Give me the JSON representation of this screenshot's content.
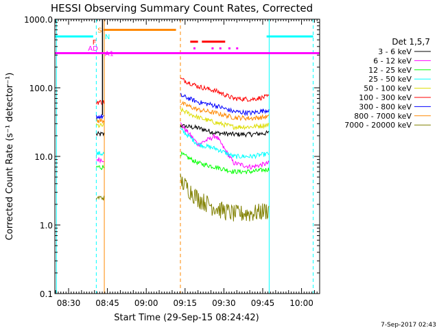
{
  "chart_data": {
    "type": "line",
    "title": "HESSI Observing Summary Count Rates, Corrected",
    "xlabel": "Start Time (29-Sep-15 08:24:42)",
    "ylabel": "Corrected Count Rate (s⁻¹ detector⁻¹)",
    "yscale": "log",
    "ylim": [
      0.1,
      1000
    ],
    "xlim_minutes": [
      24.7,
      127
    ],
    "y_ticks": [
      {
        "v": 0.1,
        "label": "0.1"
      },
      {
        "v": 1,
        "label": "1.0"
      },
      {
        "v": 10,
        "label": "10.0"
      },
      {
        "v": 100,
        "label": "100.0"
      },
      {
        "v": 1000,
        "label": "1000.0"
      }
    ],
    "x_ticks": [
      {
        "t": 30,
        "label": "08:30"
      },
      {
        "t": 45,
        "label": "08:45"
      },
      {
        "t": 60,
        "label": "09:00"
      },
      {
        "t": 75,
        "label": "09:15"
      },
      {
        "t": 90,
        "label": "09:30"
      },
      {
        "t": 105,
        "label": "09:45"
      },
      {
        "t": 120,
        "label": "10:00"
      }
    ],
    "legend_title": "Det 1,5,7",
    "legend_placement": "right",
    "timestamp": "7-Sep-2017 02:43",
    "series": [
      {
        "name": "3 - 6 keV",
        "color": "#000000",
        "seg1": 21,
        "seg2": [
          28,
          26,
          22,
          21,
          21,
          22
        ]
      },
      {
        "name": "6 - 12 keV",
        "color": "#ff00ff",
        "seg1": 9,
        "seg2": [
          30,
          15,
          20,
          8,
          7,
          8
        ]
      },
      {
        "name": "12 - 25 keV",
        "color": "#00ff00",
        "seg1": 7,
        "seg2": [
          11,
          8,
          7,
          6,
          6,
          6.5
        ]
      },
      {
        "name": "25 - 50 keV",
        "color": "#00ffff",
        "seg1": 11,
        "seg2": [
          25,
          15,
          13,
          10,
          10,
          11
        ]
      },
      {
        "name": "50 - 100 keV",
        "color": "#dddd00",
        "seg1": 28,
        "seg2": [
          48,
          37,
          31,
          27,
          27,
          29
        ]
      },
      {
        "name": "100 - 300 keV",
        "color": "#ff0000",
        "seg1": 62,
        "seg2": [
          135,
          105,
          90,
          70,
          68,
          75
        ]
      },
      {
        "name": "300 - 800 keV",
        "color": "#0000ff",
        "seg1": 38,
        "seg2": [
          78,
          62,
          55,
          45,
          43,
          48
        ]
      },
      {
        "name": "800 - 7000 keV",
        "color": "#ff8800",
        "seg1": 33,
        "seg2": [
          60,
          48,
          43,
          37,
          36,
          38
        ]
      },
      {
        "name": "7000 - 20000 keV",
        "color": "#808000",
        "seg1": 2.5,
        "seg2": [
          4.5,
          2.5,
          1.8,
          1.5,
          1.5,
          1.7
        ]
      }
    ],
    "segments": [
      {
        "start": 40.7,
        "end": 43.8
      },
      {
        "start": 73.2,
        "end": 107.5
      }
    ],
    "flare_spike": {
      "t": 43.1,
      "peak": 1000
    },
    "markers": {
      "S_label": "S",
      "N_label": "N",
      "F_label": "F",
      "AD_label": "AD",
      "A1_label": "A1",
      "saa_level": 560,
      "saa_intervals": [
        [
          24.7,
          39.5
        ],
        [
          106.5,
          124.5
        ]
      ],
      "night_level": 320,
      "night_intervals": [
        [
          24.7,
          127
        ]
      ],
      "orange_level": 700,
      "orange_intervals": [
        [
          43.5,
          71.5
        ]
      ],
      "flare_level": 470,
      "flare_intervals": [
        [
          77,
          80
        ],
        [
          81.5,
          90.5
        ]
      ],
      "dot_level": 380,
      "dot_times": [
        78.5,
        85.5,
        88.5,
        92.0,
        95.0
      ]
    },
    "vlines": [
      {
        "t": 25.3,
        "style": "solid",
        "color": "#00ffff"
      },
      {
        "t": 40.7,
        "style": "dashed",
        "color": "#00ffff"
      },
      {
        "t": 43.8,
        "style": "solid",
        "color": "#ff8800"
      },
      {
        "t": 73.2,
        "style": "dashed",
        "color": "#ff8800"
      },
      {
        "t": 107.5,
        "style": "solid",
        "color": "#00ffff"
      },
      {
        "t": 124.5,
        "style": "dashed",
        "color": "#00ffff"
      }
    ]
  }
}
